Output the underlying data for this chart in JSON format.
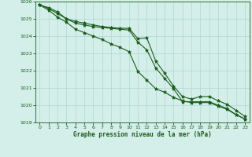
{
  "x": [
    0,
    1,
    2,
    3,
    4,
    5,
    6,
    7,
    8,
    9,
    10,
    11,
    12,
    13,
    14,
    15,
    16,
    17,
    18,
    19,
    20,
    21,
    22,
    23
  ],
  "line1": [
    1025.8,
    1025.65,
    1025.4,
    1025.0,
    1024.85,
    1024.75,
    1024.65,
    1024.55,
    1024.5,
    1024.45,
    1024.45,
    1023.85,
    1023.9,
    1022.55,
    1021.85,
    1021.1,
    1020.5,
    1020.35,
    1020.5,
    1020.5,
    1020.25,
    1020.05,
    1019.7,
    1019.35
  ],
  "line2": [
    1025.8,
    1025.6,
    1025.3,
    1025.0,
    1024.75,
    1024.65,
    1024.55,
    1024.5,
    1024.45,
    1024.4,
    1024.35,
    1023.65,
    1023.2,
    1022.15,
    1021.55,
    1020.95,
    1020.2,
    1020.2,
    1020.2,
    1020.2,
    1020.0,
    1019.8,
    1019.45,
    1019.2
  ],
  "line3": [
    1025.8,
    1025.5,
    1025.1,
    1024.8,
    1024.4,
    1024.2,
    1024.0,
    1023.8,
    1023.55,
    1023.35,
    1023.1,
    1021.95,
    1021.45,
    1020.95,
    1020.75,
    1020.45,
    1020.25,
    1020.15,
    1020.15,
    1020.15,
    1019.95,
    1019.75,
    1019.45,
    1019.2
  ],
  "bg_color": "#d4eeea",
  "grid_color": "#b0d8d2",
  "line_color": "#1a5c1a",
  "xlabel": "Graphe pression niveau de la mer (hPa)",
  "ylim": [
    1019,
    1026
  ],
  "xlim": [
    -0.5,
    23.5
  ],
  "yticks": [
    1019,
    1020,
    1021,
    1022,
    1023,
    1024,
    1025,
    1026
  ],
  "xticks": [
    0,
    1,
    2,
    3,
    4,
    5,
    6,
    7,
    8,
    9,
    10,
    11,
    12,
    13,
    14,
    15,
    16,
    17,
    18,
    19,
    20,
    21,
    22,
    23
  ]
}
